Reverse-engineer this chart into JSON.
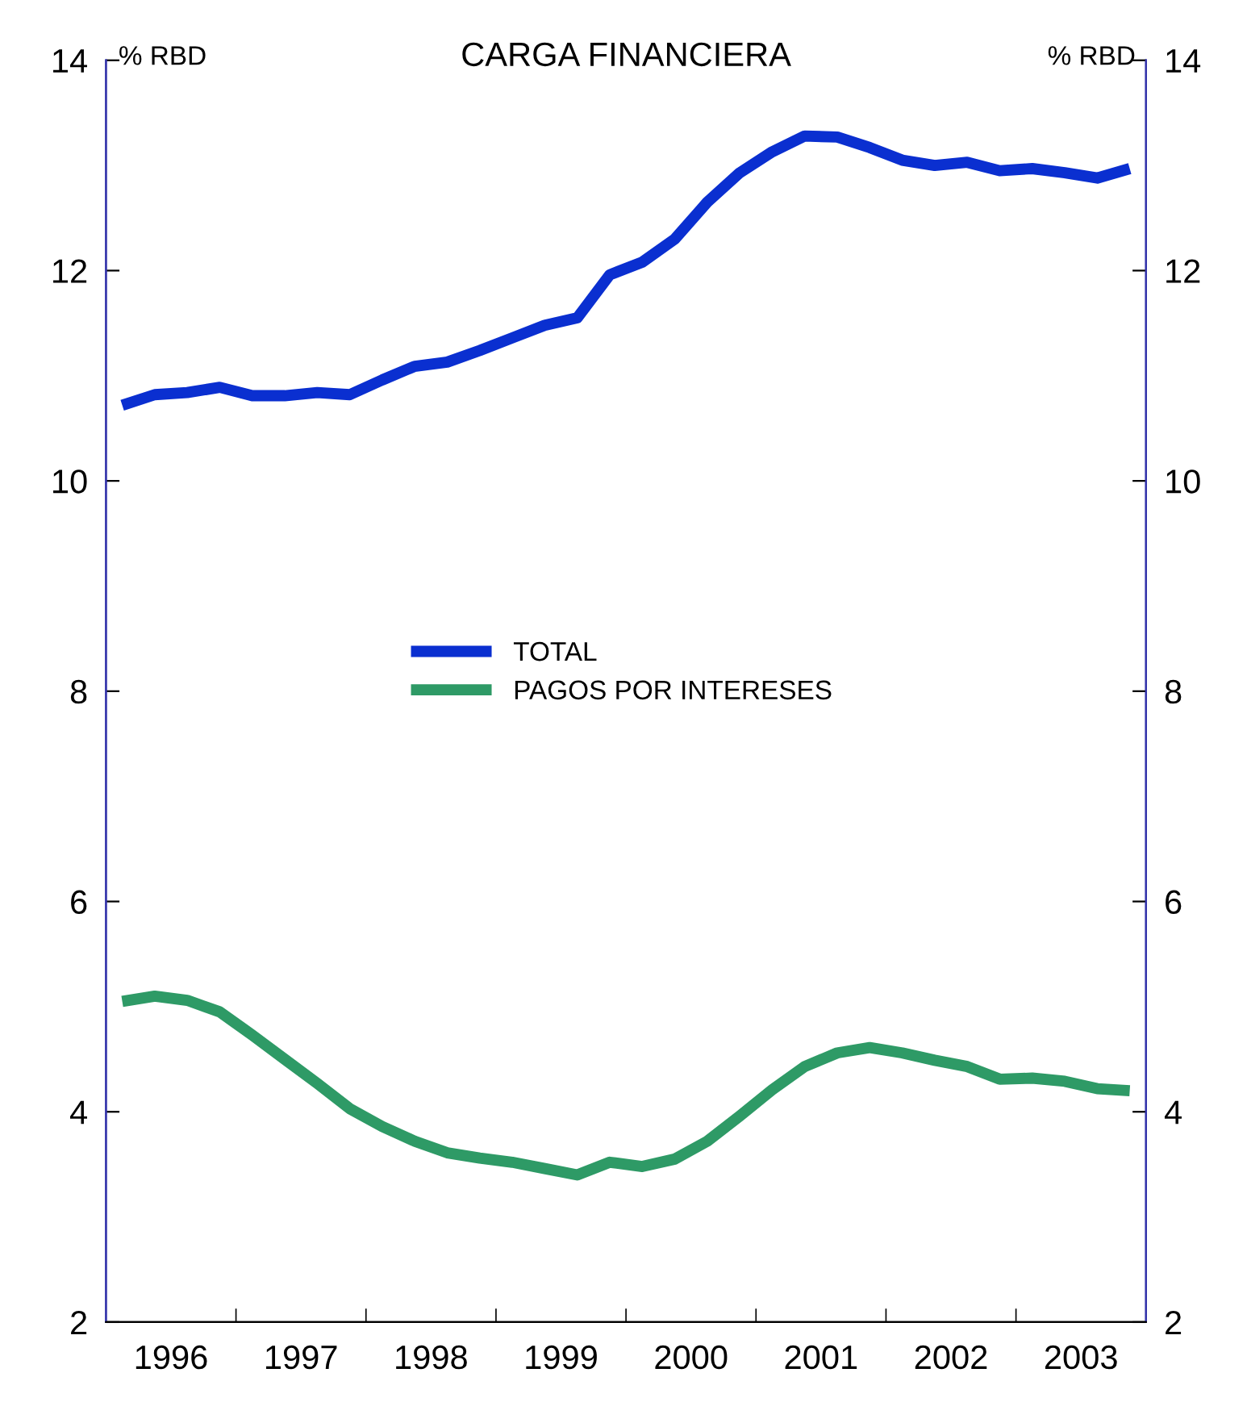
{
  "chart_data": {
    "type": "line",
    "title": "CARGA FINANCIERA",
    "ylabel": "% RBD",
    "y2label": "% RBD",
    "x": [
      1996.125,
      1996.375,
      1996.625,
      1996.875,
      1997.125,
      1997.375,
      1997.625,
      1997.875,
      1998.125,
      1998.375,
      1998.625,
      1998.875,
      1999.125,
      1999.375,
      1999.625,
      1999.875,
      2000.125,
      2000.375,
      2000.625,
      2000.875,
      2001.125,
      2001.375,
      2001.625,
      2001.875,
      2002.125,
      2002.375,
      2002.625,
      2002.875,
      2003.125,
      2003.375,
      2003.625,
      2003.875
    ],
    "series": [
      {
        "name": "TOTAL",
        "color": "#0a2fd0",
        "values": [
          10.72,
          10.82,
          10.84,
          10.89,
          10.81,
          10.81,
          10.84,
          10.82,
          10.96,
          11.09,
          11.13,
          11.24,
          11.36,
          11.48,
          11.55,
          11.96,
          12.08,
          12.3,
          12.65,
          12.93,
          13.13,
          13.28,
          13.27,
          13.17,
          13.05,
          13.0,
          13.03,
          12.95,
          12.97,
          12.93,
          12.88,
          12.97
        ]
      },
      {
        "name": "PAGOS POR INTERESES",
        "color": "#2e9a66",
        "values": [
          5.05,
          5.1,
          5.06,
          4.95,
          4.73,
          4.5,
          4.27,
          4.03,
          3.86,
          3.72,
          3.61,
          3.56,
          3.52,
          3.46,
          3.4,
          3.52,
          3.48,
          3.55,
          3.72,
          3.96,
          4.21,
          4.43,
          4.56,
          4.61,
          4.56,
          4.49,
          4.43,
          4.31,
          4.32,
          4.29,
          4.22,
          4.2
        ]
      }
    ],
    "xlim": [
      1996,
      2004
    ],
    "xticks": [
      {
        "value": 1996.5,
        "label": "1996"
      },
      {
        "value": 1997,
        "label": null
      },
      {
        "value": 1997.5,
        "label": "1997"
      },
      {
        "value": 1998,
        "label": null
      },
      {
        "value": 1998.5,
        "label": "1998"
      },
      {
        "value": 1999,
        "label": null
      },
      {
        "value": 1999.5,
        "label": "1999"
      },
      {
        "value": 2000,
        "label": null
      },
      {
        "value": 2000.5,
        "label": "2000"
      },
      {
        "value": 2001,
        "label": null
      },
      {
        "value": 2001.5,
        "label": "2001"
      },
      {
        "value": 2002,
        "label": null
      },
      {
        "value": 2002.5,
        "label": "2002"
      },
      {
        "value": 2003,
        "label": null
      },
      {
        "value": 2003.5,
        "label": "2003"
      }
    ],
    "ylim": [
      2,
      14
    ],
    "yticks": [
      2,
      4,
      6,
      8,
      10,
      12,
      14
    ],
    "y2lim": [
      2,
      14
    ],
    "y2ticks": [
      2,
      4,
      6,
      8,
      10,
      12,
      14
    ],
    "legend": "center",
    "grid": false,
    "marker": "none",
    "line_style": "solid"
  }
}
